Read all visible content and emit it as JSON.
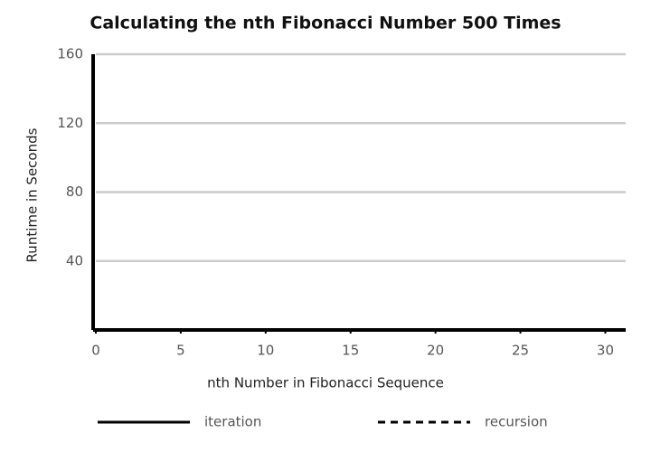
{
  "chart_data": {
    "type": "line",
    "title": "Calculating the nth Fibonacci Number 500 Times",
    "xlabel": "nth Number in Fibonacci Sequence",
    "ylabel": "Runtime in Seconds",
    "x": [
      0,
      5,
      10,
      15,
      20,
      25,
      30
    ],
    "series": [
      {
        "name": "iteration",
        "color": "#000000",
        "style": "solid",
        "values": [
          0,
          0,
          0,
          0,
          0,
          0,
          0
        ]
      },
      {
        "name": "recursion",
        "color": "#000000",
        "style": "dashed",
        "values": [
          0,
          0,
          0,
          0,
          0,
          0,
          0
        ]
      }
    ],
    "xlim": [
      0,
      31.2
    ],
    "xticks": [
      0,
      5,
      10,
      15,
      20,
      25,
      30
    ],
    "ylim": [
      0,
      160
    ],
    "yticks": [
      40,
      80,
      120,
      160
    ],
    "grid": true,
    "legend": "bottom"
  }
}
